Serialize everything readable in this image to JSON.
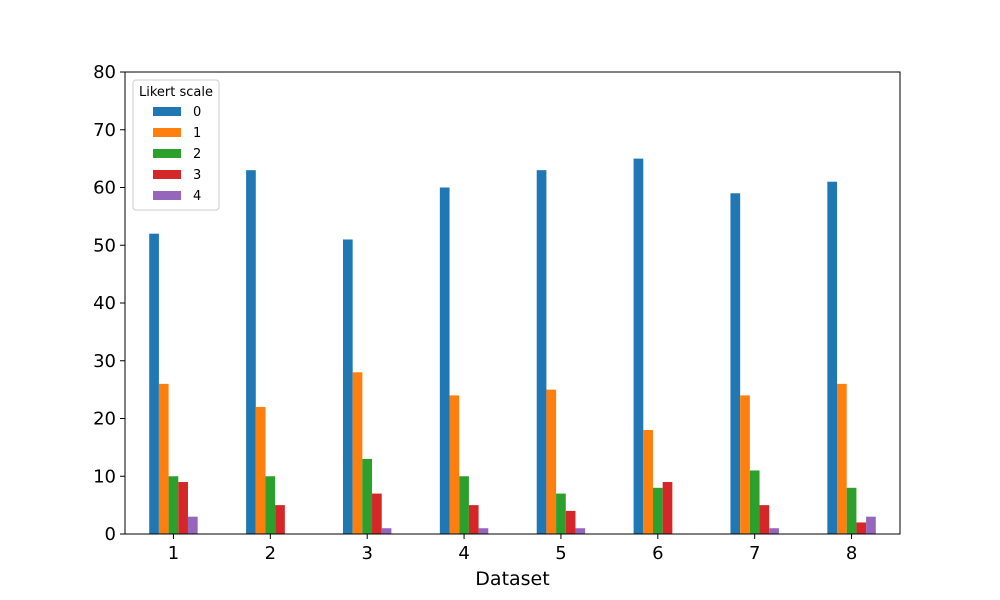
{
  "chart_data": {
    "type": "bar",
    "title": "",
    "xlabel": "Dataset",
    "ylabel": "",
    "categories": [
      "1",
      "2",
      "3",
      "4",
      "5",
      "6",
      "7",
      "8"
    ],
    "ylim": [
      0,
      80
    ],
    "yticks": [
      0,
      10,
      20,
      30,
      40,
      50,
      60,
      70,
      80
    ],
    "grid": false,
    "legend": {
      "title": "Likert scale",
      "position": "top-left"
    },
    "series": [
      {
        "name": "0",
        "color": "#1f77b4",
        "values": [
          52,
          63,
          51,
          60,
          63,
          65,
          59,
          61
        ]
      },
      {
        "name": "1",
        "color": "#ff7f0e",
        "values": [
          26,
          22,
          28,
          24,
          25,
          18,
          24,
          26
        ]
      },
      {
        "name": "2",
        "color": "#2ca02c",
        "values": [
          10,
          10,
          13,
          10,
          7,
          8,
          11,
          8
        ]
      },
      {
        "name": "3",
        "color": "#d62728",
        "values": [
          9,
          5,
          7,
          5,
          4,
          9,
          5,
          2
        ]
      },
      {
        "name": "4",
        "color": "#9467bd",
        "values": [
          3,
          0,
          1,
          1,
          1,
          0,
          1,
          3
        ]
      }
    ]
  }
}
